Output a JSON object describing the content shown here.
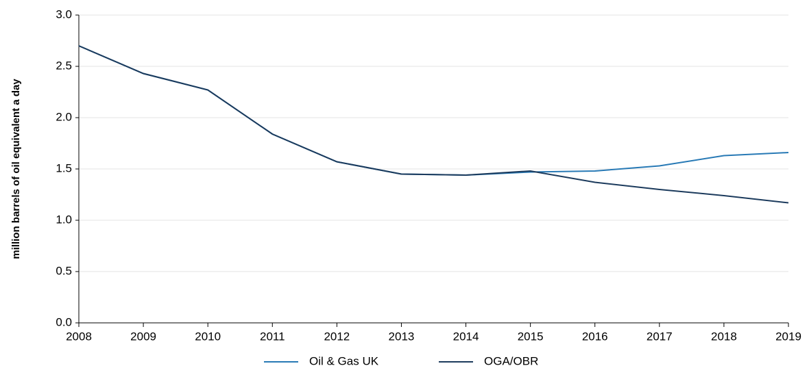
{
  "chart_data": {
    "type": "line",
    "y_label": "million barrels of oil equivalent a day",
    "x": [
      2008,
      2009,
      2010,
      2011,
      2012,
      2013,
      2014,
      2015,
      2016,
      2017,
      2018,
      2019
    ],
    "series": [
      {
        "name": "Oil & Gas UK",
        "color": "#2779b5",
        "values": [
          2.7,
          2.43,
          2.27,
          1.84,
          1.57,
          1.45,
          1.44,
          1.47,
          1.48,
          1.53,
          1.63,
          1.66
        ]
      },
      {
        "name": "OGA/OBR",
        "color": "#1b3a5c",
        "values": [
          2.7,
          2.43,
          2.27,
          1.84,
          1.57,
          1.45,
          1.44,
          1.48,
          1.37,
          1.3,
          1.24,
          1.17
        ]
      }
    ],
    "xlim": [
      2008,
      2019
    ],
    "xticks": [
      2008,
      2009,
      2010,
      2011,
      2012,
      2013,
      2014,
      2015,
      2016,
      2017,
      2018,
      2019
    ],
    "ylim": [
      0,
      3
    ],
    "yticks": [
      {
        "value": 0,
        "label": "0.0"
      },
      {
        "value": 0.5,
        "label": "0.5"
      },
      {
        "value": 1,
        "label": "1.0"
      },
      {
        "value": 1.5,
        "label": "1.5"
      },
      {
        "value": 2,
        "label": "2.0"
      },
      {
        "value": 2.5,
        "label": "2.5"
      },
      {
        "value": 3,
        "label": "3.0"
      }
    ],
    "grid": true,
    "legend": "bottom"
  }
}
